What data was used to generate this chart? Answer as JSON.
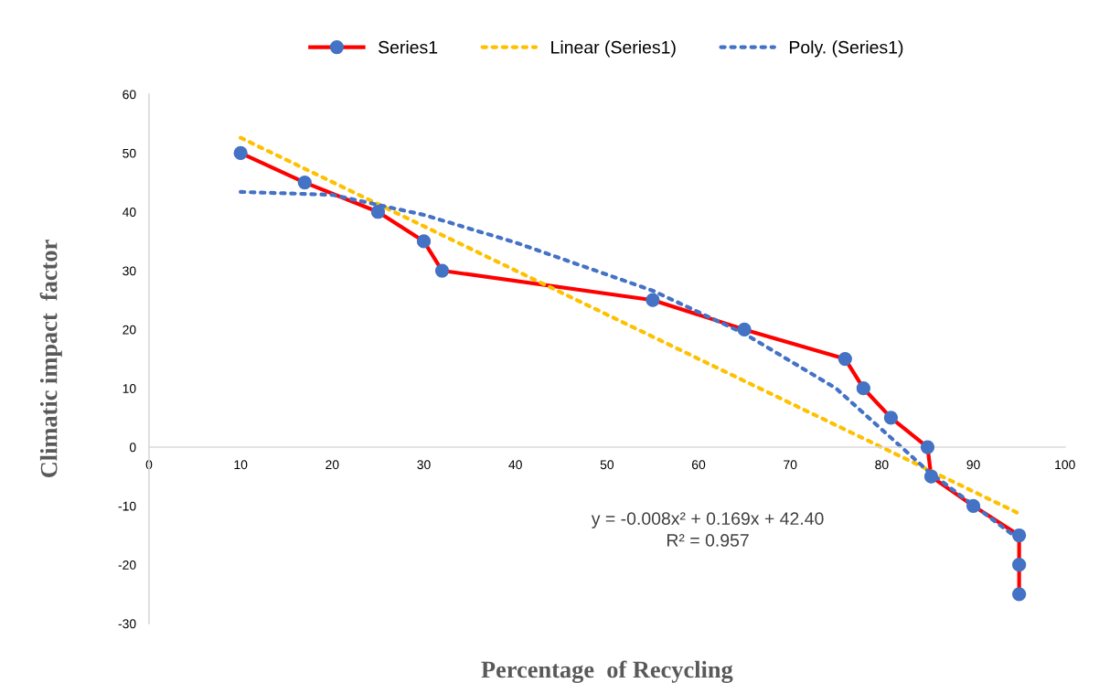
{
  "chart_data": {
    "type": "line",
    "xlabel": "Percentage  of Recycling",
    "ylabel": "Climatic impact  factor",
    "xlim": [
      0,
      100
    ],
    "ylim": [
      -30,
      60
    ],
    "xticks": [
      0,
      10,
      20,
      30,
      40,
      50,
      60,
      70,
      80,
      90,
      100
    ],
    "yticks": [
      -30,
      -20,
      -10,
      0,
      10,
      20,
      30,
      40,
      50,
      60
    ],
    "grid": false,
    "legend": "top",
    "series": [
      {
        "name": "Series1",
        "color": "#ff0000",
        "colors": [
          "#4472c4",
          "#4472c4",
          "#4472c4",
          "#4472c4",
          "#4472c4",
          "#4472c4",
          "#4472c4",
          "#4472c4",
          "#4472c4",
          "#4472c4",
          "#4472c4",
          "#4472c4",
          "#4472c4",
          "#4472c4",
          "#4472c4",
          "#4472c4"
        ],
        "marker": "circle",
        "line_style": "solid",
        "x": [
          10,
          17,
          25,
          30,
          32,
          55,
          65,
          76,
          78,
          81,
          85,
          85.4,
          90,
          95,
          95,
          95
        ],
        "values": [
          50,
          45,
          40,
          35,
          30,
          25,
          20,
          15,
          10,
          5,
          0,
          -5,
          -10,
          -15,
          -20,
          -25
        ]
      },
      {
        "name": "Linear (Series1)",
        "color": "#ffc000",
        "marker": "none",
        "line_style": "dotted",
        "x": [
          10,
          95
        ],
        "values": [
          52.6,
          -11.3
        ]
      },
      {
        "name": "Poly. (Series1)",
        "color": "#4472c4",
        "marker": "none",
        "line_style": "dotted",
        "x": [
          10,
          20,
          30,
          40,
          55,
          65,
          75,
          85,
          95
        ],
        "values": [
          43.4,
          42.9,
          39.5,
          34.8,
          26.6,
          19.3,
          10,
          -4,
          -15.7
        ]
      }
    ],
    "annotations": [
      "y = -0.008x² + 0.169x + 42.40\nR² = 0.957"
    ]
  }
}
